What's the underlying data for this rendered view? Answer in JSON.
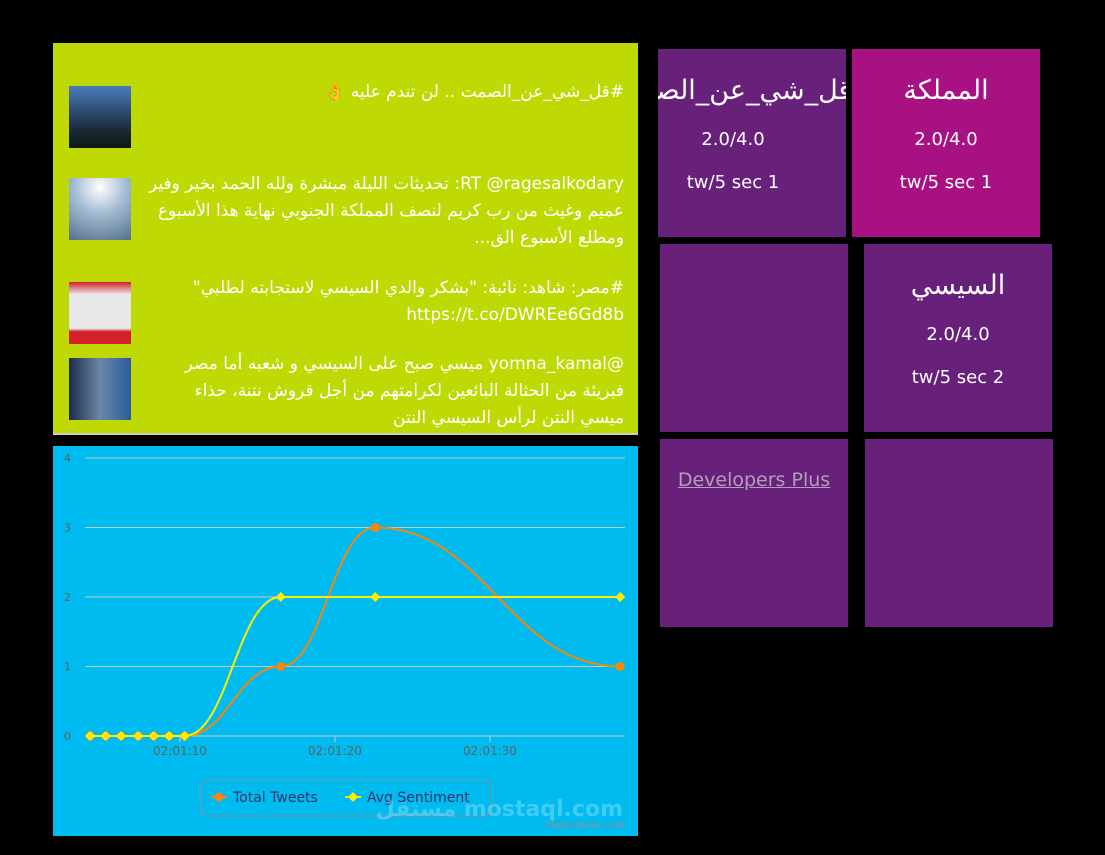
{
  "tweets": [
    {
      "text": "#قل_شي_عن_الصمت .. لن تندم عليه 👌",
      "avatar": "tower-photo"
    },
    {
      "text": "RT @ragesalkodary: تحديثات الليلة مبشرة ولله الحمد بخير وفير عميم وغيث من رب كريم لنصف المملكة الجنوبي نهاية هذا الأسبوع ومطلع الأسبوع الق...",
      "avatar": "sea-photo"
    },
    {
      "text": "#مصر: شاهد: نائبة: \"بشكر والدي السيسي لاستجابته لطلبي\" https://t.co/DWREe6Gd8b",
      "avatar": "akhbar-masr-logo"
    },
    {
      "text": "@yomna_kamal ميسي صبح على السيسي و شعبه أما مصر فبريئة من الحثالة البائعين لكرامتهم من أجل قروش نتنة، حذاء ميسي النتن لرأس السيسي النتن",
      "avatar": "people-photo"
    }
  ],
  "tiles": [
    {
      "title": "قل_شي_عن_الصمت",
      "score": "2.0/4.0",
      "rate": "tw/5 sec 1",
      "color": "#68217a"
    },
    {
      "title": "المملكة",
      "score": "2.0/4.0",
      "rate": "tw/5 sec 1",
      "color": "#a81181"
    },
    {
      "title": "",
      "score": "",
      "rate": "",
      "color": "#68217a"
    },
    {
      "title": "السيسي",
      "score": "2.0/4.0",
      "rate": "tw/5 sec 2",
      "color": "#68217a"
    },
    {
      "link": "Developers Plus",
      "color": "#68217a"
    },
    {
      "title": "",
      "color": "#68217a"
    }
  ],
  "chart_data": {
    "type": "line",
    "smooth": true,
    "ylim": [
      0,
      4
    ],
    "yticks": [
      "0",
      "1",
      "2",
      "3",
      "4"
    ],
    "xticks": [
      "02:01:10",
      "02:01:20",
      "02:01:30"
    ],
    "grid": true,
    "legend": "bottom-center",
    "credit": "Highcharts.com",
    "x": [
      "02:01:04.2",
      "02:01:05.2",
      "02:01:06.2",
      "02:01:07.3",
      "02:01:08.3",
      "02:01:09.3",
      "02:01:10.3",
      "02:01:16.5",
      "02:01:22.6",
      "02:01:38.4"
    ],
    "series": [
      {
        "name": "Total Tweets",
        "values": [
          0,
          0,
          0,
          0,
          0,
          0,
          0,
          1,
          3,
          1
        ],
        "color": "#f7860b",
        "marker": "circle"
      },
      {
        "name": "Avg Sentiment",
        "values": [
          0,
          0,
          0,
          0,
          0,
          0,
          0,
          2,
          2,
          2
        ],
        "color": "#ffee00",
        "marker": "diamond"
      }
    ]
  },
  "watermark": "مستقل mostaql.com"
}
